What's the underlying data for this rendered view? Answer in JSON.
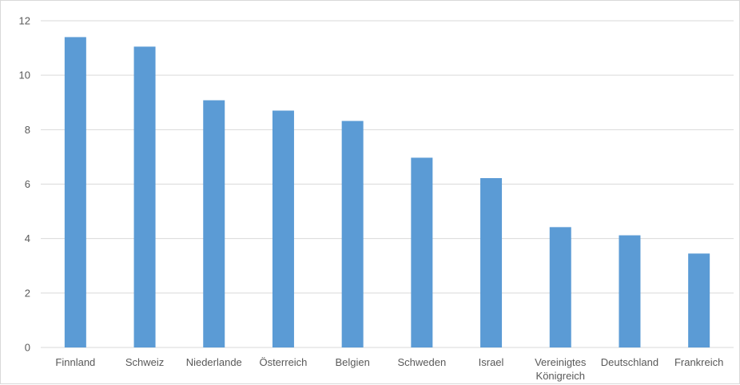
{
  "chart_data": {
    "type": "bar",
    "title": "",
    "xlabel": "",
    "ylabel": "",
    "categories": [
      "Finnland",
      "Schweiz",
      "Niederlande",
      "Österreich",
      "Belgien",
      "Schweden",
      "Israel",
      "Vereinigtes Königreich",
      "Deutschland",
      "Frankreich"
    ],
    "category_lines": [
      [
        "Finnland"
      ],
      [
        "Schweiz"
      ],
      [
        "Niederlande"
      ],
      [
        "Österreich"
      ],
      [
        "Belgien"
      ],
      [
        "Schweden"
      ],
      [
        "Israel"
      ],
      [
        "Vereinigtes",
        "Königreich"
      ],
      [
        "Deutschland"
      ],
      [
        "Frankreich"
      ]
    ],
    "values": [
      11.4,
      11.05,
      9.08,
      8.7,
      8.32,
      6.97,
      6.22,
      4.42,
      4.12,
      3.45
    ],
    "ylim": [
      0,
      12
    ],
    "yticks": [
      0,
      2,
      4,
      6,
      8,
      10,
      12
    ],
    "grid": true,
    "legend": "none",
    "bar_color": "#5b9bd5",
    "grid_color": "#d9d9d9"
  }
}
